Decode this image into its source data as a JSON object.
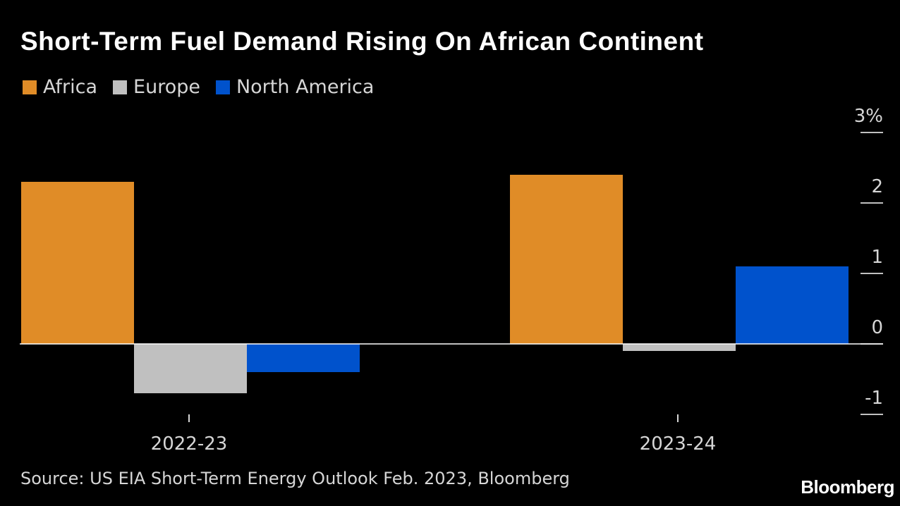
{
  "chart_data": {
    "type": "bar",
    "title": "Short-Term Fuel Demand Rising On African Continent",
    "categories": [
      "2022-23",
      "2023-24"
    ],
    "series": [
      {
        "name": "Africa",
        "color": "#e08c27",
        "values": [
          2.3,
          2.4
        ]
      },
      {
        "name": "Europe",
        "color": "#c0c0c0",
        "values": [
          -0.7,
          -0.1
        ]
      },
      {
        "name": "North America",
        "color": "#0052cc",
        "values": [
          -0.4,
          1.1
        ]
      }
    ],
    "ylim": [
      -1,
      3
    ],
    "yticks": [
      -1,
      0,
      1,
      2,
      3
    ],
    "ytick_labels": [
      "-1",
      "0",
      "1",
      "2",
      "3%"
    ],
    "xlabel": "",
    "ylabel": "",
    "legend_position": "top-left",
    "axis_side": "right",
    "grid": false
  },
  "footer": {
    "source": "Source: US EIA Short-Term Energy Outlook Feb. 2023, Bloomberg",
    "brand": "Bloomberg"
  }
}
